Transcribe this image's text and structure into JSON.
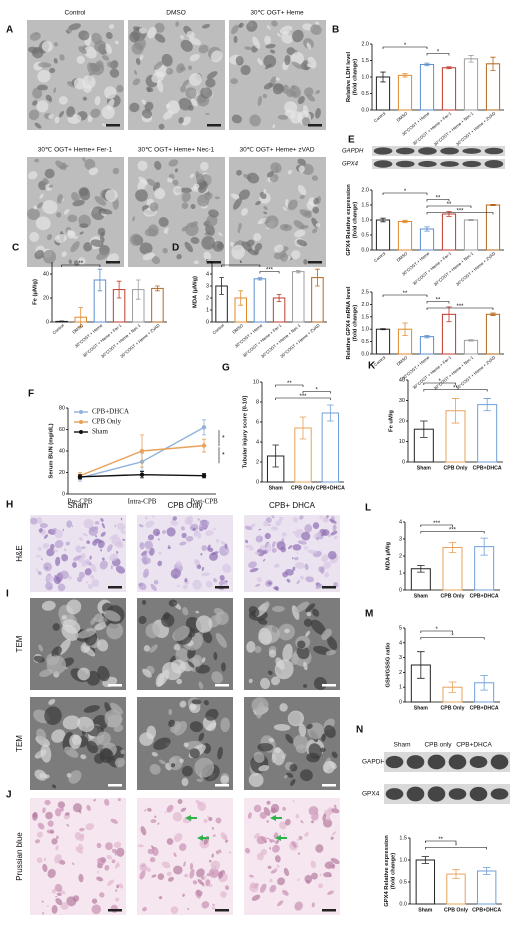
{
  "chart_data": [
    {
      "type": "bar",
      "panel": "B",
      "ylabel": [
        "Relative LDH level",
        "(fold change)"
      ],
      "categories": [
        "Control",
        "DMSO",
        "30°COGT + Heme",
        "30°COGT + Heme + Fer-1",
        "30°COGT + Heme + Nec-1",
        "30°COGT + Heme + ZVAD"
      ],
      "values": [
        1.0,
        1.05,
        1.38,
        1.28,
        1.55,
        1.4
      ],
      "errors": [
        0.15,
        0.05,
        0.04,
        0.03,
        0.1,
        0.2
      ],
      "colors": [
        "#222222",
        "#e08a2c",
        "#5b8fd0",
        "#c0392b",
        "#9e9e9e",
        "#b5651d"
      ],
      "ylim": [
        0,
        2
      ],
      "yticks": [
        {
          "value": 0,
          "label": "0.0"
        },
        0.5,
        {
          "value": 1,
          "label": "1.0"
        },
        1.5,
        {
          "value": 2,
          "label": "2.0"
        }
      ],
      "annotations": [
        {
          "text": "*",
          "between": [
            0,
            2
          ]
        },
        {
          "text": "*",
          "between": [
            2,
            3
          ]
        }
      ]
    },
    {
      "type": "bar",
      "panel": "C",
      "ylabel": [
        "Fe (μM/g)"
      ],
      "categories": [
        "Control",
        "DMSO",
        "30°COGT + Heme",
        "30°COGT + Heme + Fer-1",
        "30°COGT + Heme + Nec-1",
        "30°COGT + Heme + ZVAD"
      ],
      "values": [
        0.5,
        4,
        35,
        27,
        27,
        28
      ],
      "errors": [
        0.3,
        8,
        9,
        7,
        8,
        2
      ],
      "colors": [
        "#222222",
        "#e08a2c",
        "#5b8fd0",
        "#c0392b",
        "#9e9e9e",
        "#b5651d"
      ],
      "ylim": [
        0,
        50
      ],
      "yticks": [
        0,
        20,
        40
      ],
      "annotations": [
        {
          "text": "**",
          "between": [
            0,
            2
          ]
        }
      ]
    },
    {
      "type": "bar",
      "panel": "D",
      "ylabel": [
        "MDA (μM/g)"
      ],
      "categories": [
        "Control",
        "DMSO",
        "30°COGT + Heme",
        "30°COGT + Heme + Fer-1",
        "30°COGT + Heme + Nec-1",
        "30°COGT + Heme + ZVAD"
      ],
      "values": [
        3,
        2,
        3.6,
        2,
        4.2,
        3.7
      ],
      "errors": [
        0.7,
        0.6,
        0.1,
        0.3,
        0.1,
        0.7
      ],
      "colors": [
        "#222222",
        "#e08a2c",
        "#5b8fd0",
        "#c0392b",
        "#9e9e9e",
        "#b5651d"
      ],
      "ylim": [
        0,
        5
      ],
      "yticks": [
        0,
        1,
        2,
        3,
        4,
        5
      ],
      "annotations": [
        {
          "text": "*",
          "between": [
            0,
            2
          ]
        },
        {
          "text": "***",
          "between": [
            2,
            3
          ]
        }
      ]
    },
    {
      "type": "bar",
      "ylabel": [
        "GPX4 Relative expression",
        "(fold change)"
      ],
      "categories": [
        "Control",
        "DMSO",
        "30°COGT + Heme",
        "30°COGT + Heme + Fer-1",
        "30°COGT + Heme + Nec-1",
        "30°COGT + Heme + ZVAD"
      ],
      "values": [
        1.0,
        0.95,
        0.7,
        1.2,
        1.0,
        1.5
      ],
      "errors": [
        0.06,
        0.04,
        0.07,
        0.08,
        0.02,
        0.02
      ],
      "colors": [
        "#222222",
        "#e08a2c",
        "#5b8fd0",
        "#c0392b",
        "#9e9e9e",
        "#b5651d"
      ],
      "ylim": [
        0,
        2
      ],
      "yticks": [
        {
          "value": 0,
          "label": "0.0"
        },
        0.5,
        {
          "value": 1,
          "label": "1.0"
        },
        1.5,
        {
          "value": 2,
          "label": "2.0"
        }
      ],
      "annotations": [
        {
          "text": "*",
          "between": [
            0,
            2
          ]
        },
        {
          "text": "**",
          "between": [
            2,
            3
          ]
        },
        {
          "text": "**",
          "between": [
            2,
            4
          ]
        },
        {
          "text": "***",
          "between": [
            2,
            5
          ]
        }
      ]
    },
    {
      "type": "bar",
      "ylabel": [
        "Relative GPX4 mRNA level",
        "(fold change)"
      ],
      "categories": [
        "Control",
        "DMSO",
        "30°COGT + Heme",
        "30°COGT + Heme + Fer-1",
        "30°COGT + Heme + Nec-1",
        "30°COGT + Heme + ZVAD"
      ],
      "values": [
        1.0,
        1.0,
        0.7,
        1.6,
        0.55,
        1.6
      ],
      "errors": [
        0.02,
        0.25,
        0.05,
        0.3,
        0.03,
        0.05
      ],
      "colors": [
        "#222222",
        "#e08a2c",
        "#5b8fd0",
        "#c0392b",
        "#9e9e9e",
        "#b5651d"
      ],
      "ylim": [
        0,
        2.5
      ],
      "yticks": [
        {
          "value": 0,
          "label": "0.0"
        },
        0.5,
        {
          "value": 1,
          "label": "1.0"
        },
        1.5,
        {
          "value": 2,
          "label": "2.0"
        },
        2.5
      ],
      "annotations": [
        {
          "text": "**",
          "between": [
            0,
            2
          ]
        },
        {
          "text": "**",
          "between": [
            2,
            3
          ]
        },
        {
          "text": "***",
          "between": [
            2,
            5
          ]
        }
      ]
    },
    {
      "type": "line",
      "panel": "F",
      "ylabel": [
        "Serum BUN (mg/dL)"
      ],
      "categories": [
        "Pre-CPB",
        "Intra-CPB",
        "Post-CPB"
      ],
      "series": [
        {
          "name": "CPB+DHCA",
          "color": "#8fb3dc",
          "values": [
            15,
            30,
            62
          ],
          "errors": [
            3,
            8,
            7
          ]
        },
        {
          "name": "CPB Only",
          "color": "#e8a05a",
          "values": [
            17,
            40,
            45
          ],
          "errors": [
            3,
            15,
            6
          ]
        },
        {
          "name": "Sham",
          "color": "#111111",
          "values": [
            16,
            18,
            17
          ],
          "errors": [
            2,
            3,
            2
          ]
        }
      ],
      "ylim": [
        0,
        80
      ],
      "yticks": [
        0,
        20,
        40,
        60,
        80
      ],
      "legend": "upper left",
      "annotations": [
        "*",
        "*"
      ]
    },
    {
      "type": "bar",
      "panel": "G",
      "ylabel": [
        "Tubular injury score [0-10]"
      ],
      "categories": [
        "Sham",
        "CPB Only",
        "CPB+DHCA"
      ],
      "values": [
        2.6,
        5.4,
        6.9
      ],
      "errors": [
        1.1,
        1.1,
        0.8
      ],
      "colors": [
        "#222222",
        "#e8a05a",
        "#6f9fd8"
      ],
      "ylim": [
        0,
        10
      ],
      "yticks": [
        0,
        2,
        4,
        6,
        8,
        10
      ],
      "annotations": [
        {
          "text": "**",
          "between": [
            0,
            1
          ]
        },
        {
          "text": "*",
          "between": [
            1,
            2
          ]
        },
        {
          "text": "***",
          "between": [
            0,
            2
          ]
        }
      ]
    },
    {
      "type": "bar",
      "panel": "K",
      "ylabel": [
        "Fe uM/g"
      ],
      "categories": [
        "Sham",
        "CPB Only",
        "CPB+DHCA"
      ],
      "values": [
        16,
        25,
        28
      ],
      "errors": [
        4,
        6,
        3
      ],
      "colors": [
        "#222222",
        "#e8a05a",
        "#6f9fd8"
      ],
      "ylim": [
        0,
        40
      ],
      "yticks": [
        0,
        10,
        20,
        30,
        40
      ],
      "annotations": [
        {
          "text": "*",
          "between": [
            0,
            1
          ]
        },
        {
          "text": "**",
          "between": [
            0,
            2
          ]
        }
      ]
    },
    {
      "type": "bar",
      "panel": "L",
      "ylabel": [
        "MDA μM/g"
      ],
      "categories": [
        "Sham",
        "CPB Only",
        "CPB+DHCA"
      ],
      "values": [
        1.25,
        2.5,
        2.55
      ],
      "errors": [
        0.2,
        0.3,
        0.5
      ],
      "colors": [
        "#222222",
        "#e8a05a",
        "#6f9fd8"
      ],
      "ylim": [
        0,
        4
      ],
      "yticks": [
        0,
        1,
        2,
        3,
        4
      ],
      "annotations": [
        {
          "text": "***",
          "between": [
            0,
            1
          ]
        },
        {
          "text": "***",
          "between": [
            0,
            2
          ]
        }
      ]
    },
    {
      "type": "bar",
      "panel": "M",
      "ylabel": [
        "GSH/GSSG ratio"
      ],
      "categories": [
        "Sham",
        "CPB Only",
        "CPB+DHCA"
      ],
      "values": [
        2.5,
        1.0,
        1.3
      ],
      "errors": [
        0.9,
        0.35,
        0.5
      ],
      "colors": [
        "#222222",
        "#e8a05a",
        "#6f9fd8"
      ],
      "ylim": [
        0,
        5
      ],
      "yticks": [
        0,
        1,
        2,
        3,
        4,
        5
      ],
      "annotations": [
        {
          "text": "*",
          "between": [
            0,
            1
          ]
        },
        {
          "text": "*",
          "between": [
            0,
            2
          ]
        }
      ]
    },
    {
      "type": "bar",
      "ylabel": [
        "GPX4 Relative expression",
        "(fold change)"
      ],
      "categories": [
        "Sham",
        "CPB Only",
        "CPB+DHCA"
      ],
      "values": [
        1.0,
        0.68,
        0.75
      ],
      "errors": [
        0.08,
        0.1,
        0.08
      ],
      "colors": [
        "#222222",
        "#e8a05a",
        "#6f9fd8"
      ],
      "ylim": [
        0,
        1.5
      ],
      "yticks": [
        {
          "value": 0,
          "label": "0.0"
        },
        0.5,
        {
          "value": 1,
          "label": "1.0"
        },
        1.5
      ],
      "annotations": [
        {
          "text": "**",
          "between": [
            0,
            1
          ]
        },
        {
          "text": "*",
          "between": [
            0,
            2
          ]
        }
      ]
    }
  ],
  "micrographs": {
    "A": {
      "panel": "A",
      "titles": [
        "Control",
        "DMSO",
        "30℃ OGT+ Heme",
        "30℃ OGT+ Heme+ Fer-1",
        "30℃ OGT+ Heme+ Nec-1",
        "30℃ OGT+ Heme+ zVAD"
      ]
    },
    "HIJ": {
      "panels": [
        "H",
        "I",
        "J"
      ],
      "columns": [
        "Sham",
        "CPB Only",
        "CPB+ DHCA"
      ],
      "rows": [
        "H&E",
        "TEM",
        "TEM",
        "Prussian blue"
      ]
    }
  },
  "blots": {
    "E": {
      "panel": "E",
      "labels": [
        "GAPDH",
        "GPX4"
      ]
    },
    "N": {
      "panel": "N",
      "lanes": [
        "Sham",
        "CPB only",
        "CPB+DHCA"
      ],
      "labels": [
        "GAPDH",
        "GPX4"
      ]
    }
  }
}
